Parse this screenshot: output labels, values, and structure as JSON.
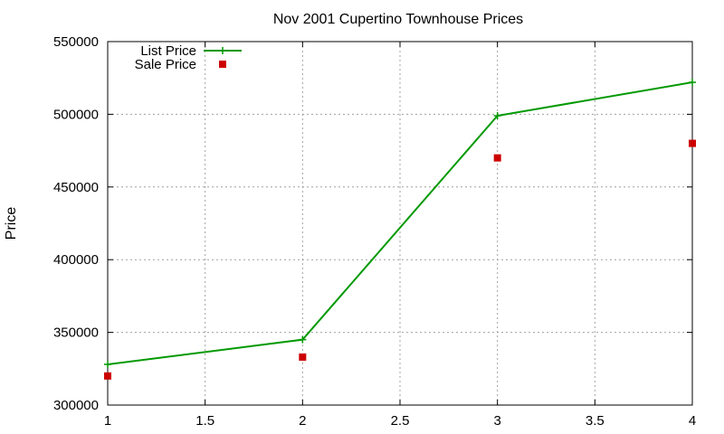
{
  "chart_data": {
    "type": "line",
    "title": "Nov 2001 Cupertino Townhouse Prices",
    "xlabel": "",
    "ylabel": "Price",
    "xlim": [
      1,
      4
    ],
    "ylim": [
      300000,
      550000
    ],
    "xticks": [
      1,
      1.5,
      2,
      2.5,
      3,
      3.5,
      4
    ],
    "xtick_labels": [
      "1",
      "1.5",
      "2",
      "2.5",
      "3",
      "3.5",
      "4"
    ],
    "yticks": [
      300000,
      350000,
      400000,
      450000,
      500000,
      550000
    ],
    "ytick_labels": [
      "300000",
      "350000",
      "400000",
      "450000",
      "500000",
      "550000"
    ],
    "grid": true,
    "legend_position": "top-left",
    "series": [
      {
        "name": "List Price",
        "style": "linespoints",
        "marker": "plus",
        "color": "#009900",
        "x": [
          1,
          2,
          3,
          4
        ],
        "y": [
          328000,
          345000,
          499000,
          522000
        ]
      },
      {
        "name": "Sale Price",
        "style": "points",
        "marker": "square",
        "color": "#cc0000",
        "x": [
          1,
          2,
          3,
          4
        ],
        "y": [
          320000,
          333000,
          470000,
          480000
        ]
      }
    ]
  }
}
